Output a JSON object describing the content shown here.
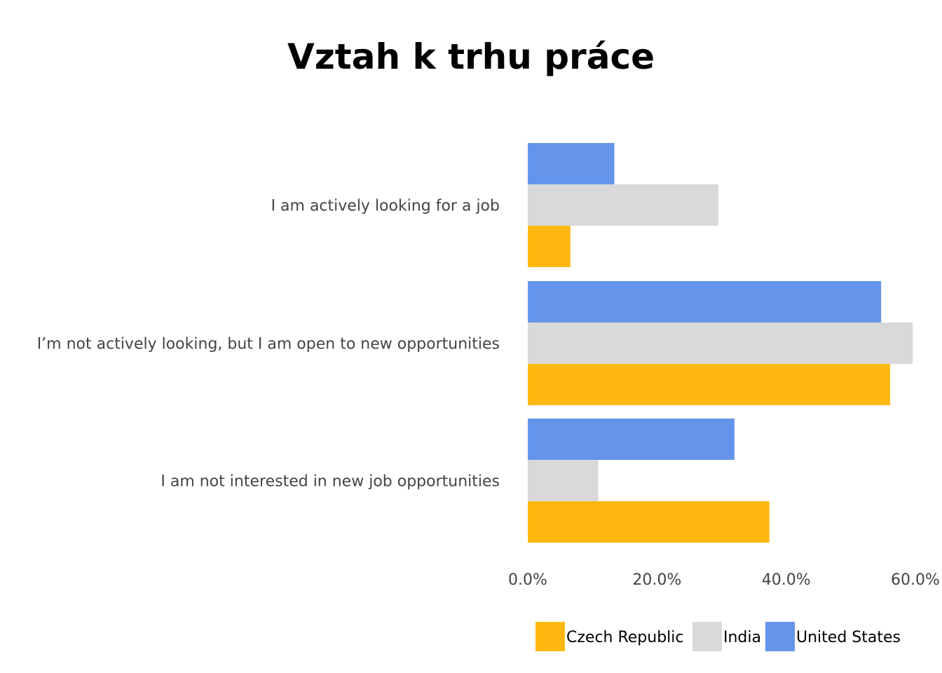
{
  "chart_data": {
    "type": "bar",
    "orientation": "horizontal",
    "title": "Vztah k trhu práce",
    "categories": [
      "I am actively looking for a job",
      "I’m not actively looking, but I am open to new opportunities",
      "I am not interested in new job opportunities"
    ],
    "series": [
      {
        "name": "Czech Republic",
        "color": "#FFB810",
        "values": [
          6.6,
          56.1,
          37.4
        ]
      },
      {
        "name": "India",
        "color": "#D9D9D9",
        "values": [
          29.5,
          59.6,
          10.9
        ]
      },
      {
        "name": "United States",
        "color": "#6495EA",
        "values": [
          13.4,
          54.7,
          32.0
        ]
      }
    ],
    "xlim": [
      0,
      60
    ],
    "xticks": [
      0,
      20,
      40,
      60
    ],
    "xtick_labels": [
      "0.0%",
      "20.0%",
      "40.0%",
      "60.0%"
    ],
    "xlabel": "",
    "ylabel": "",
    "grid": false,
    "legend_position": "bottom"
  }
}
